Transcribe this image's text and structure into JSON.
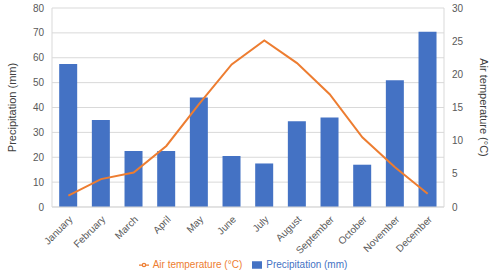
{
  "chart_data": {
    "type": "bar",
    "categories": [
      "January",
      "February",
      "March",
      "April",
      "May",
      "June",
      "July",
      "August",
      "September",
      "October",
      "November",
      "December"
    ],
    "series": [
      {
        "name": "Precipitation (mm)",
        "type": "bar",
        "color": "#4472c4",
        "values": [
          57.5,
          35,
          22.5,
          22.5,
          44,
          20.5,
          17.5,
          34.5,
          36,
          17,
          51,
          70.5
        ]
      },
      {
        "name": "Air temperature (°C)",
        "type": "line",
        "axis": "y2",
        "color": "#ed7d31",
        "marker": "none",
        "values": [
          1.7,
          4.2,
          5.2,
          9.2,
          15.5,
          21.5,
          25.1,
          21.7,
          17,
          10.5,
          6,
          2
        ]
      }
    ],
    "ylabel": "Precipitation (mm)",
    "y2label": "Air temperature (°C)",
    "ylim": [
      0,
      80
    ],
    "yticks": [
      0,
      10,
      20,
      30,
      40,
      50,
      60,
      70,
      80
    ],
    "y2lim": [
      0,
      30
    ],
    "y2ticks": [
      0,
      5,
      10,
      15,
      20,
      25,
      30
    ],
    "grid": true,
    "legend": "bottom"
  }
}
